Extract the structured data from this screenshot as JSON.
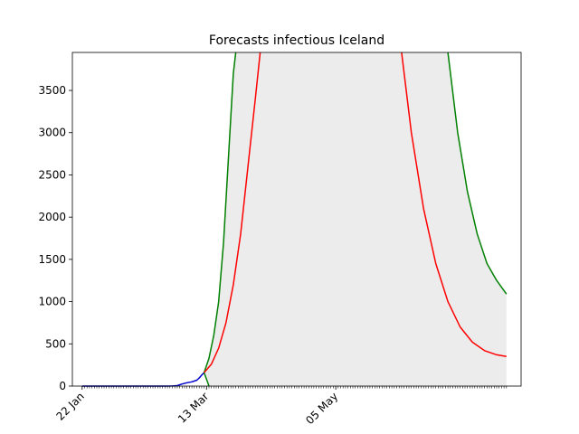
{
  "chart_data": {
    "type": "line",
    "title": "Forecasts infectious Iceland",
    "xlabel": "",
    "ylabel": "",
    "x_start": "22 Jan",
    "x_end": "14 Jul",
    "xlim": [
      "18 Jan",
      "20 Jul"
    ],
    "ylim": [
      0,
      3950
    ],
    "x_ticks": [
      "22 Jan",
      "13 Mar",
      "05 May"
    ],
    "y_ticks": [
      0,
      500,
      1000,
      1500,
      2000,
      2500,
      3000,
      3500
    ],
    "grid": false,
    "legend": "none",
    "series": [
      {
        "color": "#0000cc",
        "points": [
          [
            "22 Jan",
            0
          ],
          [
            "05 Feb",
            0
          ],
          [
            "25 Feb",
            0
          ],
          [
            "28 Feb",
            1
          ],
          [
            "01 Mar",
            5
          ],
          [
            "03 Mar",
            25
          ],
          [
            "05 Mar",
            40
          ],
          [
            "07 Mar",
            50
          ],
          [
            "09 Mar",
            70
          ],
          [
            "10 Mar",
            95
          ],
          [
            "11 Mar",
            130
          ],
          [
            "12 Mar",
            160
          ]
        ]
      },
      {
        "color": "#008000",
        "points": [
          [
            "12 Mar",
            160
          ],
          [
            "14 Mar",
            330
          ],
          [
            "16 Mar",
            600
          ],
          [
            "18 Mar",
            1000
          ],
          [
            "20 Mar",
            1700
          ],
          [
            "22 Mar",
            2700
          ],
          [
            "24 Mar",
            3700
          ],
          [
            "25 Mar",
            3950
          ]
        ]
      },
      {
        "color": "#008000",
        "points": [
          [
            "12 Mar",
            160
          ],
          [
            "13 Mar",
            80
          ],
          [
            "14 Mar",
            0
          ]
        ]
      },
      {
        "color": "#ff0000",
        "points": [
          [
            "12 Mar",
            160
          ],
          [
            "15 Mar",
            260
          ],
          [
            "18 Mar",
            450
          ],
          [
            "21 Mar",
            750
          ],
          [
            "24 Mar",
            1200
          ],
          [
            "27 Mar",
            1800
          ],
          [
            "30 Mar",
            2600
          ],
          [
            "02 Apr",
            3400
          ],
          [
            "04 Apr",
            3950
          ]
        ]
      },
      {
        "color": "#ff0000",
        "points": [
          [
            "01 Jun",
            3950
          ],
          [
            "05 Jun",
            3000
          ],
          [
            "10 Jun",
            2100
          ],
          [
            "15 Jun",
            1450
          ],
          [
            "20 Jun",
            1000
          ],
          [
            "25 Jun",
            700
          ],
          [
            "30 Jun",
            520
          ],
          [
            "05 Jul",
            420
          ],
          [
            "10 Jul",
            370
          ],
          [
            "14 Jul",
            350
          ]
        ]
      },
      {
        "color": "#008000",
        "points": [
          [
            "20 Jun",
            3950
          ],
          [
            "24 Jun",
            3000
          ],
          [
            "28 Jun",
            2300
          ],
          [
            "02 Jul",
            1800
          ],
          [
            "06 Jul",
            1450
          ],
          [
            "10 Jul",
            1250
          ],
          [
            "14 Jul",
            1090
          ]
        ]
      }
    ],
    "band": {
      "color": "#ececec",
      "from": "12 Mar",
      "to": "14 Jul",
      "lower": [
        [
          "12 Mar",
          160
        ],
        [
          "13 Mar",
          80
        ],
        [
          "14 Mar",
          0
        ],
        [
          "14 Jul",
          0
        ]
      ],
      "upper": [
        [
          "12 Mar",
          160
        ],
        [
          "14 Mar",
          330
        ],
        [
          "16 Mar",
          600
        ],
        [
          "18 Mar",
          1000
        ],
        [
          "20 Mar",
          1700
        ],
        [
          "22 Mar",
          2700
        ],
        [
          "24 Mar",
          3700
        ],
        [
          "25 Mar",
          3950
        ],
        [
          "20 Jun",
          3950
        ],
        [
          "24 Jun",
          3000
        ],
        [
          "28 Jun",
          2300
        ],
        [
          "02 Jul",
          1800
        ],
        [
          "06 Jul",
          1450
        ],
        [
          "10 Jul",
          1250
        ],
        [
          "14 Jul",
          1090
        ]
      ]
    }
  }
}
